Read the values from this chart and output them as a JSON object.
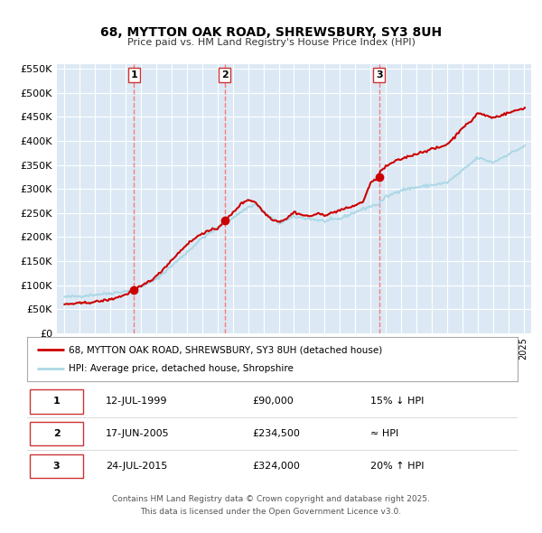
{
  "title": "68, MYTTON OAK ROAD, SHREWSBURY, SY3 8UH",
  "subtitle": "Price paid vs. HM Land Registry's House Price Index (HPI)",
  "legend_line1": "68, MYTTON OAK ROAD, SHREWSBURY, SY3 8UH (detached house)",
  "legend_line2": "HPI: Average price, detached house, Shropshire",
  "footer_line1": "Contains HM Land Registry data © Crown copyright and database right 2025.",
  "footer_line2": "This data is licensed under the Open Government Licence v3.0.",
  "transactions": [
    {
      "num": 1,
      "date": "12-JUL-1999",
      "price": "£90,000",
      "rel": "15% ↓ HPI",
      "year": 1999.53,
      "value": 90000
    },
    {
      "num": 2,
      "date": "17-JUN-2005",
      "price": "£234,500",
      "rel": "≈ HPI",
      "year": 2005.46,
      "value": 234500
    },
    {
      "num": 3,
      "date": "24-JUL-2015",
      "price": "£324,000",
      "rel": "20% ↑ HPI",
      "year": 2015.56,
      "value": 324000
    }
  ],
  "hpi_color": "#add8e6",
  "price_color": "#cc0000",
  "vline_color": "#ff6666",
  "plot_bg_color": "#dce9f5",
  "ylim": [
    0,
    560000
  ],
  "yticks": [
    0,
    50000,
    100000,
    150000,
    200000,
    250000,
    300000,
    350000,
    400000,
    450000,
    500000,
    550000
  ],
  "xlim_start": 1994.5,
  "xlim_end": 2025.5
}
